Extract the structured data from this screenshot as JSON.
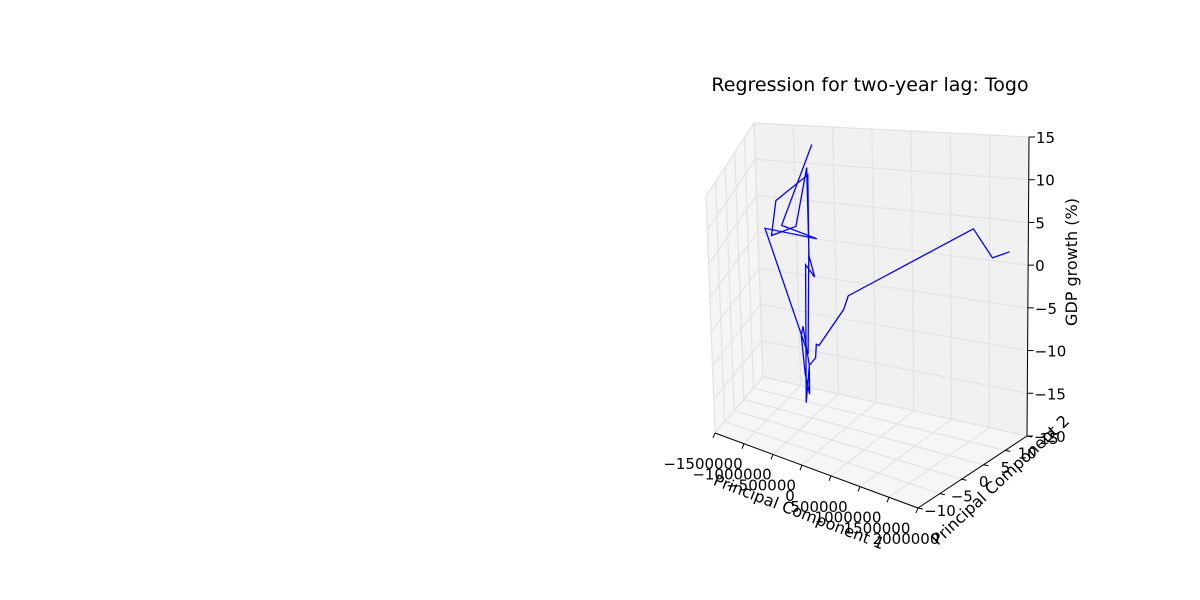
{
  "chart_data": {
    "type": "line",
    "projection": "3d",
    "title": "Regression for two-year lag: Togo",
    "xlabel": "Principal Component 1",
    "ylabel": "Principal Component 2",
    "zlabel": "GDP growth (%)",
    "xticks": [
      "−1500000",
      "−1000000",
      "−500000",
      "0",
      "500000",
      "1000000",
      "1500000",
      "2000000"
    ],
    "yticks": [
      "−10",
      "−5",
      "0",
      "5",
      "10",
      "15"
    ],
    "zticks": [
      "−20",
      "−15",
      "−10",
      "−5",
      "0",
      "5",
      "10",
      "15"
    ],
    "xlim": [
      -1500000,
      2000000
    ],
    "ylim": [
      -10,
      15
    ],
    "zlim": [
      -20,
      15
    ],
    "grid": true,
    "series": [
      {
        "color": "#0000ff",
        "points": [
          [
            1800000,
            14.3,
            1.6
          ],
          [
            1600000,
            13.9,
            0.8
          ],
          [
            1400000,
            13.0,
            4.4
          ],
          [
            240000,
            1.6,
            -1.2
          ],
          [
            150000,
            3.3,
            -2.0
          ],
          [
            150000,
            1.8,
            -3.2
          ],
          [
            -150000,
            -0.1,
            -7.8
          ],
          [
            -200000,
            0.1,
            -7.8
          ],
          [
            -180000,
            -0.7,
            -9.3
          ],
          [
            -250000,
            -1.4,
            -10.2
          ],
          [
            -330000,
            -1.4,
            -5.1
          ],
          [
            -370000,
            -1.2,
            -6.5
          ],
          [
            -300000,
            -1.8,
            -11.3
          ],
          [
            -170000,
            -3.3,
            -13.2
          ],
          [
            -180000,
            -2.9,
            -9.6
          ],
          [
            -280000,
            -2.2,
            -15.0
          ],
          [
            -310000,
            -0.3,
            2.8
          ],
          [
            -200000,
            0.2,
            1.1
          ],
          [
            -290000,
            0.5,
            3.7
          ],
          [
            -310000,
            1.0,
            15.3
          ],
          [
            -500000,
            1.1,
            7.2
          ],
          [
            -900000,
            1.8,
            5.2
          ],
          [
            -790000,
            1.1,
            10.4
          ],
          [
            -300000,
            1.1,
            14.3
          ],
          [
            -310000,
            0.9,
            4.2
          ],
          [
            -300000,
            -0.6,
            -9.1
          ],
          [
            -950000,
            0.6,
            6.6
          ],
          [
            -200000,
            1.3,
            5.8
          ],
          [
            -760000,
            2.2,
            6.6
          ],
          [
            -330000,
            3.4,
            17.4
          ]
        ]
      }
    ]
  }
}
